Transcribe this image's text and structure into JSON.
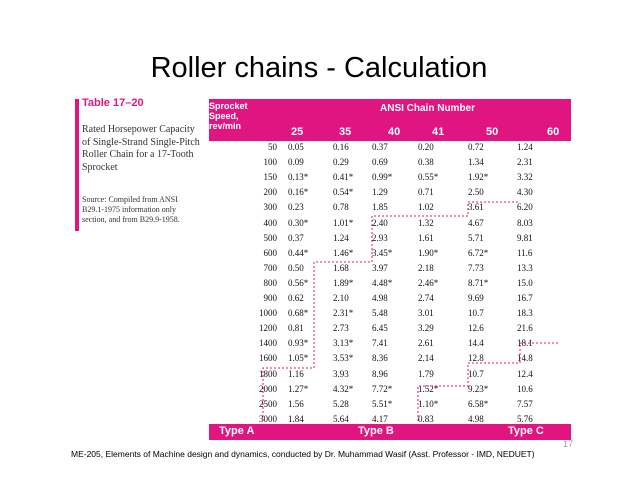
{
  "title": "Roller chains - Calculation",
  "table": {
    "number": "Table 17–20",
    "caption": "Rated Horsepower Capacity of Single-Strand Single-Pitch Roller Chain for a 17-Tooth Sprocket",
    "source": "Source: Compiled from ANSI B29.1-1975 information only section, and from B29.9-1958.",
    "speed_header": "Sprocket Speed, rev/min",
    "group_header": "ANSI Chain Number",
    "columns": [
      "25",
      "35",
      "40",
      "41",
      "50",
      "60"
    ],
    "rows": [
      {
        "speed": "50",
        "values": [
          "0.05",
          "0.16",
          "0.37",
          "0.20",
          "0.72",
          "1.24"
        ]
      },
      {
        "speed": "100",
        "values": [
          "0.09",
          "0.29",
          "0.69",
          "0.38",
          "1.34",
          "2.31"
        ]
      },
      {
        "speed": "150",
        "values": [
          "0.13*",
          "0.41*",
          "0.99*",
          "0.55*",
          "1.92*",
          "3.32"
        ]
      },
      {
        "speed": "200",
        "values": [
          "0.16*",
          "0.54*",
          "1.29",
          "0.71",
          "2.50",
          "4.30"
        ]
      },
      {
        "speed": "300",
        "values": [
          "0.23",
          "0.78",
          "1.85",
          "1.02",
          "3.61",
          "6.20"
        ]
      },
      {
        "speed": "400",
        "values": [
          "0.30*",
          "1.01*",
          "2.40",
          "1.32",
          "4.67",
          "8.03"
        ]
      },
      {
        "speed": "500",
        "values": [
          "0.37",
          "1.24",
          "2.93",
          "1.61",
          "5.71",
          "9.81"
        ]
      },
      {
        "speed": "600",
        "values": [
          "0.44*",
          "1.46*",
          "3.45*",
          "1.90*",
          "6.72*",
          "11.6"
        ]
      },
      {
        "speed": "700",
        "values": [
          "0.50",
          "1.68",
          "3.97",
          "2.18",
          "7.73",
          "13.3"
        ]
      },
      {
        "speed": "800",
        "values": [
          "0.56*",
          "1.89*",
          "4.48*",
          "2.46*",
          "8.71*",
          "15.0"
        ]
      },
      {
        "speed": "900",
        "values": [
          "0.62",
          "2.10",
          "4.98",
          "2.74",
          "9.69",
          "16.7"
        ]
      },
      {
        "speed": "1000",
        "values": [
          "0.68*",
          "2.31*",
          "5.48",
          "3.01",
          "10.7",
          "18.3"
        ]
      },
      {
        "speed": "1200",
        "values": [
          "0.81",
          "2.73",
          "6.45",
          "3.29",
          "12.6",
          "21.6"
        ]
      },
      {
        "speed": "1400",
        "values": [
          "0.93*",
          "3.13*",
          "7.41",
          "2.61",
          "14.4",
          "18.1"
        ]
      },
      {
        "speed": "1600",
        "values": [
          "1.05*",
          "3.53*",
          "8.36",
          "2.14",
          "12.8",
          "14.8"
        ]
      },
      {
        "speed": "1800",
        "values": [
          "1.16",
          "3.93",
          "8.96",
          "1.79",
          "10.7",
          "12.4"
        ]
      },
      {
        "speed": "2000",
        "values": [
          "1.27*",
          "4.32*",
          "7.72*",
          "1.52*",
          "9.23*",
          "10.6"
        ]
      },
      {
        "speed": "2500",
        "values": [
          "1.56",
          "5.28",
          "5.51*",
          "1.10*",
          "6.58*",
          "7.57"
        ]
      },
      {
        "speed": "3000",
        "values": [
          "1.84",
          "5.64",
          "4.17",
          "0.83",
          "4.98",
          "5.76"
        ]
      }
    ],
    "types": [
      "Type A",
      "Type B",
      "Type C"
    ]
  },
  "footer": "ME-205, Elements of Machine design and dynamics, conducted by Dr. Muhammad Wasif (Asst. Professor - IMD, NEDUET)",
  "page_number": "17",
  "colors": {
    "accent": "#e0157f"
  }
}
